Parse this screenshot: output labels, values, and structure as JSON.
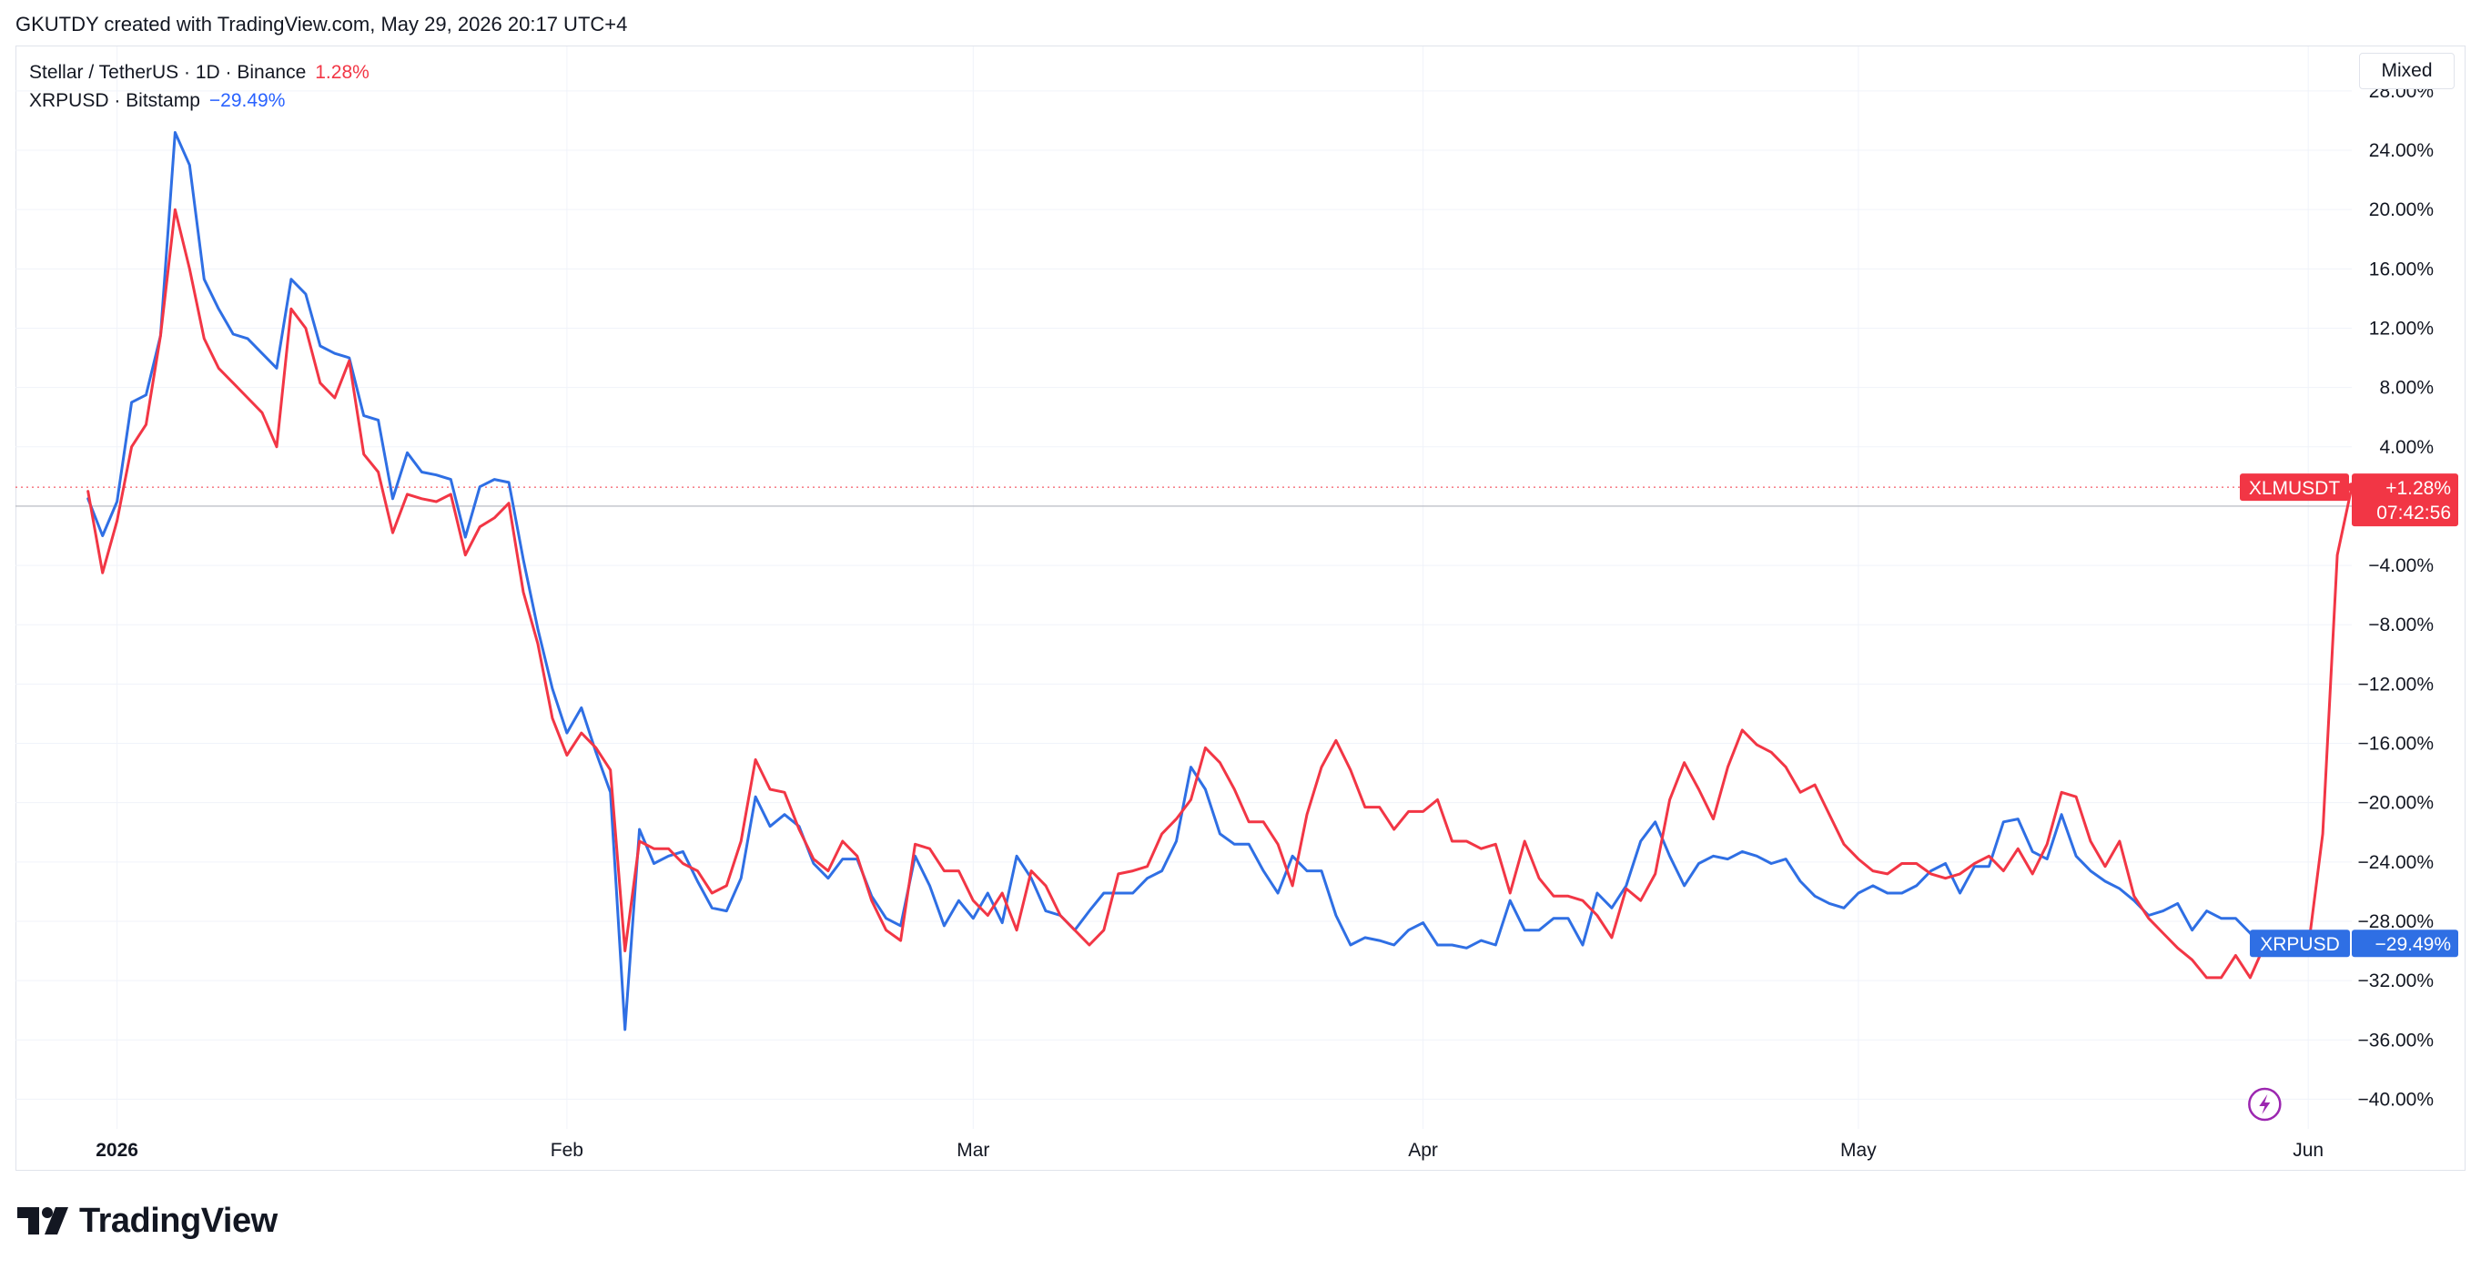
{
  "header": {
    "attribution": "GKUTDY created with TradingView.com, May 29, 2026 20:17 UTC+4"
  },
  "mode_button": {
    "label": "Mixed"
  },
  "legend": {
    "items": [
      {
        "label": "Stellar / TetherUS · 1D · Binance",
        "value": "1.28%",
        "color": "#f23645"
      },
      {
        "label": "XRPUSD · Bitstamp",
        "value": "−29.49%",
        "color": "#2962ff"
      }
    ]
  },
  "brand": {
    "name": "TradingView",
    "icon": "tradingview-logo-icon"
  },
  "colors": {
    "xlm": "#f23645",
    "xrp": "#2f6fe4",
    "grid": "#f0f3fa",
    "zero_line": "#b2b5be"
  },
  "chart_data": {
    "type": "line",
    "x_start": "2025-12-25",
    "x_end": "2026-06-04",
    "ylim": [
      -42,
      31
    ],
    "grid": true,
    "legend_position": "top-left",
    "y_ticks": [
      "28.00%",
      "24.00%",
      "20.00%",
      "16.00%",
      "12.00%",
      "8.00%",
      "4.00%",
      "−4.00%",
      "−8.00%",
      "−12.00%",
      "−16.00%",
      "−20.00%",
      "−24.00%",
      "−28.00%",
      "−32.00%",
      "−36.00%",
      "−40.00%"
    ],
    "y_tick_values": [
      28,
      24,
      20,
      16,
      12,
      8,
      4,
      -4,
      -8,
      -12,
      -16,
      -20,
      -24,
      -28,
      -32,
      -36,
      -40
    ],
    "x_ticks": [
      {
        "label": "2026",
        "date": "2026-01-01",
        "bold": true
      },
      {
        "label": "Feb",
        "date": "2026-02-01",
        "bold": false
      },
      {
        "label": "Mar",
        "date": "2026-03-01",
        "bold": false
      },
      {
        "label": "Apr",
        "date": "2026-04-01",
        "bold": false
      },
      {
        "label": "May",
        "date": "2026-05-01",
        "bold": false
      },
      {
        "label": "Jun",
        "date": "2026-06-01",
        "bold": false
      }
    ],
    "series": [
      {
        "name": "XLMUSDT",
        "start_date": "2025-12-30",
        "last_value_label": "+1.28%",
        "countdown": "07:42:56",
        "values": [
          1,
          -4.5,
          -1,
          4,
          5.5,
          11.5,
          20,
          16,
          11.3,
          9.3,
          8.3,
          7.3,
          6.3,
          4,
          13.3,
          12,
          8.3,
          7.3,
          9.8,
          3.5,
          2.3,
          -1.8,
          0.8,
          0.5,
          0.3,
          0.8,
          -3.3,
          -1.4,
          -0.8,
          0.2,
          -5.8,
          -9.3,
          -14.3,
          -16.8,
          -15.3,
          -16.3,
          -17.8,
          -30,
          -22.6,
          -23.1,
          -23.1,
          -24.1,
          -24.6,
          -26.1,
          -25.6,
          -22.6,
          -17.1,
          -19.1,
          -19.3,
          -21.8,
          -23.8,
          -24.6,
          -22.6,
          -23.6,
          -26.6,
          -28.6,
          -29.3,
          -22.8,
          -23.1,
          -24.6,
          -24.6,
          -26.6,
          -27.6,
          -26.1,
          -28.6,
          -24.6,
          -25.6,
          -27.6,
          -28.6,
          -29.6,
          -28.6,
          -24.8,
          -24.6,
          -24.3,
          -22.1,
          -21.1,
          -19.8,
          -16.3,
          -17.3,
          -19.1,
          -21.3,
          -21.3,
          -22.8,
          -25.6,
          -20.8,
          -17.6,
          -15.8,
          -17.8,
          -20.3,
          -20.3,
          -21.8,
          -20.6,
          -20.6,
          -19.8,
          -22.6,
          -22.6,
          -23.1,
          -22.8,
          -26.1,
          -22.6,
          -25.1,
          -26.3,
          -26.3,
          -26.6,
          -27.6,
          -29.1,
          -25.8,
          -26.6,
          -24.8,
          -19.8,
          -17.3,
          -19.1,
          -21.1,
          -17.6,
          -15.1,
          -16.1,
          -16.6,
          -17.6,
          -19.3,
          -18.8,
          -20.8,
          -22.8,
          -23.8,
          -24.6,
          -24.8,
          -24.1,
          -24.1,
          -24.8,
          -25.1,
          -24.8,
          -24.1,
          -23.6,
          -24.6,
          -23.1,
          -24.8,
          -22.8,
          -19.3,
          -19.6,
          -22.6,
          -24.3,
          -22.6,
          -26.3,
          -27.8,
          -28.8,
          -29.8,
          -30.6,
          -31.8,
          -31.8,
          -30.3,
          -31.8,
          -29.6,
          -29.8,
          -29.1,
          -29.8,
          -22.1,
          -3.3,
          1.28
        ]
      },
      {
        "name": "XRPUSD",
        "start_date": "2025-12-30",
        "last_value_label": "−29.49%",
        "values": [
          0.5,
          -2,
          0.3,
          7,
          7.5,
          11.5,
          25.2,
          23,
          15.3,
          13.3,
          11.6,
          11.3,
          10.3,
          9.3,
          15.3,
          14.3,
          10.8,
          10.3,
          10,
          6.1,
          5.8,
          0.5,
          3.6,
          2.3,
          2.1,
          1.8,
          -2.1,
          1.3,
          1.8,
          1.6,
          -3.6,
          -8.3,
          -12.3,
          -15.3,
          -13.6,
          -16.6,
          -19.3,
          -35.3,
          -21.8,
          -24.1,
          -23.6,
          -23.3,
          -25.3,
          -27.1,
          -27.3,
          -25.1,
          -19.6,
          -21.6,
          -20.8,
          -21.6,
          -24.1,
          -25.1,
          -23.8,
          -23.8,
          -26.3,
          -27.8,
          -28.3,
          -23.6,
          -25.6,
          -28.3,
          -26.6,
          -27.8,
          -26.1,
          -28.1,
          -23.6,
          -25.1,
          -27.3,
          -27.6,
          -28.6,
          -27.3,
          -26.1,
          -26.1,
          -26.1,
          -25.1,
          -24.6,
          -22.6,
          -17.6,
          -19.1,
          -22.1,
          -22.8,
          -22.8,
          -24.6,
          -26.1,
          -23.6,
          -24.6,
          -24.6,
          -27.6,
          -29.6,
          -29.1,
          -29.3,
          -29.6,
          -28.6,
          -28.1,
          -29.6,
          -29.6,
          -29.8,
          -29.3,
          -29.6,
          -26.6,
          -28.6,
          -28.6,
          -27.8,
          -27.8,
          -29.6,
          -26.1,
          -27.1,
          -25.6,
          -22.6,
          -21.3,
          -23.6,
          -25.6,
          -24.1,
          -23.6,
          -23.8,
          -23.3,
          -23.6,
          -24.1,
          -23.8,
          -25.3,
          -26.3,
          -26.8,
          -27.1,
          -26.1,
          -25.6,
          -26.1,
          -26.1,
          -25.6,
          -24.6,
          -24.1,
          -26.1,
          -24.3,
          -24.3,
          -21.3,
          -21.1,
          -23.3,
          -23.8,
          -20.8,
          -23.6,
          -24.6,
          -25.3,
          -25.8,
          -26.6,
          -27.6,
          -27.3,
          -26.8,
          -28.6,
          -27.3,
          -27.8,
          -27.8,
          -28.8,
          -30.1,
          -29.6,
          -29.49
        ]
      }
    ]
  }
}
